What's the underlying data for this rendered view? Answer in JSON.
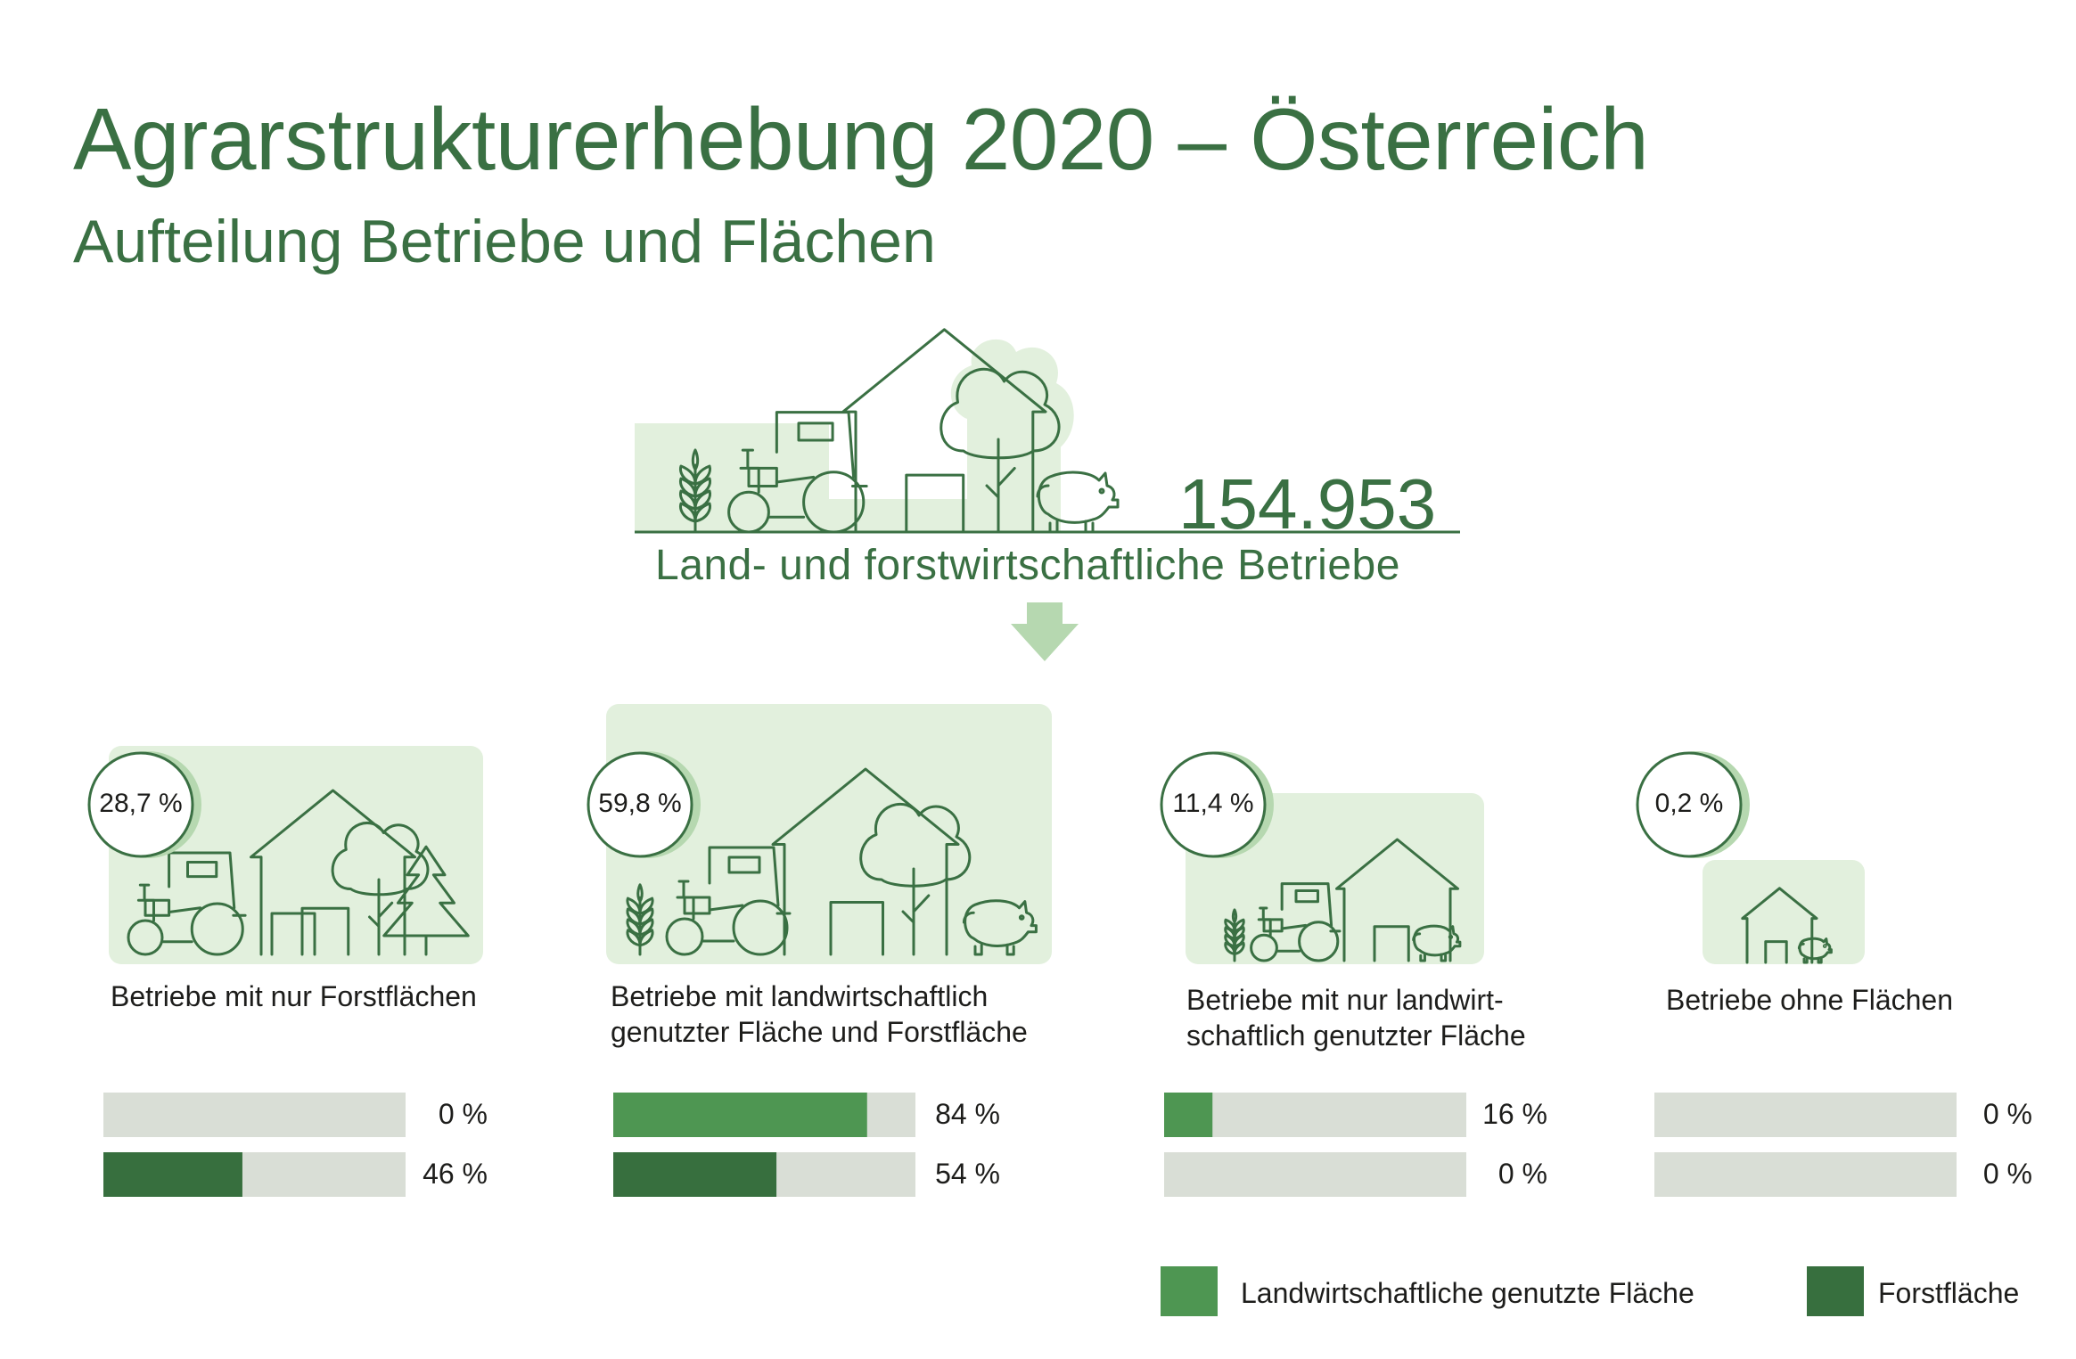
{
  "title": "Agrarstrukturerhebung 2020 – Österreich",
  "subtitle": "Aufteilung Betriebe und Flächen",
  "total": {
    "value": "154.953",
    "label": "Land- und forstwirtschaftliche Betriebe"
  },
  "colors": {
    "agri": "#4e9652",
    "forest": "#376f3e",
    "track": "#d9ded6",
    "panel": "#e2f0dd",
    "accent": "#3a7043"
  },
  "chart_data": {
    "type": "bar",
    "title": "Agrarstrukturerhebung 2020 – Österreich",
    "subtitle": "Aufteilung Betriebe und Flächen",
    "categories": [
      "Betriebe mit nur Forstflächen",
      "Betriebe mit landwirtschaftlich genutzter Fläche und Forstfläche",
      "Betriebe mit nur landwirtschaftlich genutzter Fläche",
      "Betriebe ohne Flächen"
    ],
    "share_of_holdings": [
      "28,7 %",
      "59,8 %",
      "11,4 %",
      "0,2 %"
    ],
    "series": [
      {
        "name": "Landwirtschaftliche genutzte Fläche",
        "values": [
          0,
          84,
          16,
          0
        ],
        "labels": [
          "0 %",
          "84 %",
          "16 %",
          "0 %"
        ]
      },
      {
        "name": "Forstfläche",
        "values": [
          46,
          54,
          0,
          0
        ],
        "labels": [
          "46 %",
          "54 %",
          "0 %",
          "0 %"
        ]
      }
    ],
    "ylim": [
      0,
      100
    ],
    "legend": "bottom-right"
  },
  "categories_display": [
    {
      "pct": "28,7 %",
      "label_lines": [
        "Betriebe mit nur Forstflächen"
      ]
    },
    {
      "pct": "59,8 %",
      "label_lines": [
        "Betriebe mit landwirtschaftlich",
        "genutzter Fläche und Forstfläche"
      ]
    },
    {
      "pct": "11,4 %",
      "label_lines": [
        "Betriebe mit nur landwirt-",
        "schaftlich genutzter Fläche"
      ]
    },
    {
      "pct": "0,2 %",
      "label_lines": [
        "Betriebe ohne Flächen"
      ]
    }
  ],
  "legend": {
    "agri_label": "Landwirtschaftliche genutzte Fläche",
    "forest_label": "Forstfläche"
  },
  "icons": [
    "tractor-icon",
    "house-icon",
    "tree-icon",
    "fir-tree-icon",
    "grain-icon",
    "pig-icon",
    "arrow-down-icon"
  ]
}
